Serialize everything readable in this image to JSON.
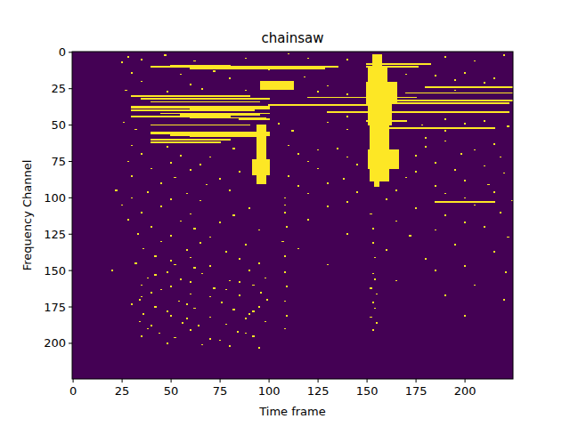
{
  "chart_data": {
    "type": "heatmap",
    "title": "chainsaw",
    "x_label": "Time frame",
    "y_label": "Frequency Channel",
    "xlim": [
      -0.5,
      224.5
    ],
    "ylim": [
      224.5,
      -0.5
    ],
    "xticks": [
      0,
      25,
      50,
      75,
      100,
      125,
      150,
      175,
      200
    ],
    "yticks": [
      0,
      25,
      50,
      75,
      100,
      125,
      150,
      175,
      200
    ],
    "zlim": [
      0,
      1
    ],
    "colors": [
      "#440154",
      "#fde725"
    ],
    "background": 0,
    "cell_value": 1,
    "cells": [
      [
        10,
        10,
        40,
        135
      ],
      [
        9,
        9,
        50,
        80
      ],
      [
        11,
        11,
        60,
        128
      ],
      [
        8,
        8,
        150,
        182
      ],
      [
        10,
        10,
        150,
        176
      ],
      [
        20,
        25,
        96,
        112
      ],
      [
        30,
        30,
        30,
        90
      ],
      [
        31,
        31,
        120,
        175
      ],
      [
        32,
        32,
        35,
        100
      ],
      [
        33,
        33,
        150,
        224
      ],
      [
        34,
        34,
        40,
        95
      ],
      [
        35,
        35,
        160,
        222
      ],
      [
        36,
        36,
        100,
        150
      ],
      [
        37,
        38,
        30,
        100
      ],
      [
        39,
        39,
        60,
        100
      ],
      [
        40,
        40,
        30,
        92
      ],
      [
        41,
        41,
        130,
        222
      ],
      [
        42,
        42,
        45,
        100
      ],
      [
        43,
        43,
        55,
        95
      ],
      [
        44,
        44,
        30,
        80
      ],
      [
        45,
        45,
        60,
        98
      ],
      [
        46,
        46,
        85,
        100
      ],
      [
        47,
        47,
        150,
        170
      ],
      [
        50,
        50,
        40,
        90
      ],
      [
        52,
        52,
        155,
        215
      ],
      [
        55,
        56,
        40,
        100
      ],
      [
        57,
        57,
        50,
        100
      ],
      [
        58,
        58,
        60,
        95
      ],
      [
        60,
        60,
        40,
        80
      ],
      [
        62,
        62,
        40,
        75
      ],
      [
        28,
        28,
        170,
        224
      ],
      [
        24,
        24,
        180,
        224
      ],
      [
        103,
        103,
        185,
        215
      ],
      [
        50,
        90,
        94,
        98
      ],
      [
        74,
        84,
        92,
        100
      ],
      [
        2,
        10,
        153,
        157
      ],
      [
        11,
        20,
        151,
        160
      ],
      [
        21,
        35,
        150,
        165
      ],
      [
        36,
        50,
        151,
        162
      ],
      [
        51,
        66,
        152,
        161
      ],
      [
        67,
        80,
        151,
        166
      ],
      [
        81,
        88,
        152,
        161
      ],
      [
        89,
        92,
        154,
        156
      ],
      [
        3,
        3,
        28,
        28
      ],
      [
        5,
        5,
        35,
        35
      ],
      [
        2,
        2,
        47,
        47
      ],
      [
        6,
        6,
        62,
        62
      ],
      [
        4,
        4,
        88,
        88
      ],
      [
        1,
        1,
        110,
        110
      ],
      [
        5,
        5,
        140,
        140
      ],
      [
        3,
        3,
        190,
        190
      ],
      [
        6,
        6,
        205,
        205
      ],
      [
        2,
        2,
        220,
        220
      ],
      [
        14,
        14,
        30,
        30
      ],
      [
        15,
        15,
        55,
        55
      ],
      [
        13,
        13,
        72,
        72
      ],
      [
        17,
        17,
        118,
        118
      ],
      [
        16,
        16,
        185,
        185
      ],
      [
        14,
        14,
        200,
        200
      ],
      [
        18,
        18,
        215,
        215
      ],
      [
        26,
        26,
        27,
        27
      ],
      [
        27,
        27,
        48,
        48
      ],
      [
        25,
        25,
        66,
        66
      ],
      [
        26,
        26,
        88,
        88
      ],
      [
        27,
        27,
        125,
        125
      ],
      [
        29,
        29,
        140,
        140
      ],
      [
        26,
        26,
        195,
        195
      ],
      [
        48,
        48,
        26,
        26
      ],
      [
        49,
        49,
        105,
        105
      ],
      [
        48,
        48,
        130,
        130
      ],
      [
        50,
        50,
        178,
        178
      ],
      [
        49,
        49,
        200,
        200
      ],
      [
        51,
        51,
        222,
        222
      ],
      [
        53,
        53,
        32,
        32
      ],
      [
        54,
        54,
        112,
        112
      ],
      [
        53,
        53,
        140,
        140
      ],
      [
        54,
        54,
        190,
        190
      ],
      [
        64,
        64,
        30,
        30
      ],
      [
        65,
        65,
        48,
        48
      ],
      [
        66,
        66,
        82,
        82
      ],
      [
        64,
        64,
        110,
        110
      ],
      [
        66,
        66,
        135,
        135
      ],
      [
        65,
        65,
        180,
        180
      ],
      [
        67,
        67,
        205,
        205
      ],
      [
        70,
        70,
        35,
        35
      ],
      [
        71,
        71,
        55,
        55
      ],
      [
        72,
        72,
        70,
        70
      ],
      [
        70,
        70,
        115,
        115
      ],
      [
        72,
        72,
        140,
        140
      ],
      [
        71,
        71,
        175,
        175
      ],
      [
        70,
        70,
        198,
        198
      ],
      [
        72,
        72,
        218,
        218
      ],
      [
        75,
        75,
        28,
        28
      ],
      [
        76,
        76,
        50,
        50
      ],
      [
        77,
        77,
        65,
        65
      ],
      [
        75,
        75,
        120,
        120
      ],
      [
        77,
        77,
        145,
        145
      ],
      [
        76,
        76,
        185,
        185
      ],
      [
        78,
        78,
        210,
        210
      ],
      [
        80,
        80,
        40,
        40
      ],
      [
        81,
        81,
        60,
        60
      ],
      [
        82,
        82,
        85,
        85
      ],
      [
        80,
        80,
        125,
        125
      ],
      [
        82,
        82,
        175,
        175
      ],
      [
        81,
        81,
        195,
        195
      ],
      [
        83,
        83,
        220,
        220
      ],
      [
        85,
        85,
        30,
        30
      ],
      [
        86,
        86,
        52,
        52
      ],
      [
        87,
        87,
        75,
        75
      ],
      [
        85,
        85,
        110,
        110
      ],
      [
        87,
        87,
        138,
        138
      ],
      [
        86,
        86,
        170,
        170
      ],
      [
        88,
        88,
        200,
        200
      ],
      [
        90,
        90,
        45,
        45
      ],
      [
        91,
        91,
        68,
        68
      ],
      [
        92,
        92,
        115,
        115
      ],
      [
        90,
        90,
        130,
        130
      ],
      [
        92,
        92,
        185,
        185
      ],
      [
        91,
        91,
        212,
        212
      ],
      [
        95,
        95,
        22,
        22
      ],
      [
        96,
        96,
        38,
        38
      ],
      [
        97,
        97,
        58,
        58
      ],
      [
        95,
        95,
        80,
        80
      ],
      [
        97,
        97,
        120,
        120
      ],
      [
        96,
        96,
        145,
        145
      ],
      [
        95,
        95,
        165,
        165
      ],
      [
        97,
        97,
        190,
        190
      ],
      [
        96,
        96,
        215,
        215
      ],
      [
        100,
        100,
        30,
        30
      ],
      [
        101,
        101,
        50,
        50
      ],
      [
        102,
        102,
        65,
        65
      ],
      [
        100,
        100,
        108,
        108
      ],
      [
        103,
        103,
        140,
        140
      ],
      [
        101,
        101,
        160,
        160
      ],
      [
        100,
        100,
        200,
        200
      ],
      [
        102,
        102,
        224,
        224
      ],
      [
        105,
        105,
        25,
        25
      ],
      [
        106,
        106,
        45,
        45
      ],
      [
        107,
        107,
        90,
        90
      ],
      [
        105,
        105,
        108,
        108
      ],
      [
        106,
        106,
        130,
        130
      ],
      [
        107,
        107,
        175,
        175
      ],
      [
        105,
        105,
        205,
        205
      ],
      [
        110,
        110,
        35,
        35
      ],
      [
        111,
        111,
        60,
        60
      ],
      [
        112,
        112,
        82,
        82
      ],
      [
        110,
        110,
        108,
        108
      ],
      [
        111,
        111,
        152,
        152
      ],
      [
        112,
        112,
        190,
        190
      ],
      [
        110,
        110,
        218,
        218
      ],
      [
        115,
        115,
        28,
        28
      ],
      [
        116,
        116,
        55,
        55
      ],
      [
        117,
        117,
        75,
        75
      ],
      [
        115,
        115,
        120,
        120
      ],
      [
        116,
        116,
        165,
        165
      ],
      [
        117,
        117,
        200,
        200
      ],
      [
        120,
        120,
        40,
        40
      ],
      [
        121,
        121,
        62,
        62
      ],
      [
        122,
        122,
        95,
        95
      ],
      [
        120,
        120,
        109,
        109
      ],
      [
        121,
        121,
        153,
        153
      ],
      [
        122,
        122,
        185,
        185
      ],
      [
        120,
        120,
        210,
        210
      ],
      [
        125,
        125,
        33,
        33
      ],
      [
        126,
        126,
        50,
        50
      ],
      [
        127,
        127,
        70,
        70
      ],
      [
        125,
        125,
        140,
        140
      ],
      [
        126,
        126,
        172,
        172
      ],
      [
        127,
        127,
        222,
        222
      ],
      [
        130,
        130,
        45,
        45
      ],
      [
        131,
        131,
        65,
        65
      ],
      [
        132,
        132,
        88,
        88
      ],
      [
        130,
        130,
        107,
        107
      ],
      [
        131,
        131,
        153,
        153
      ],
      [
        132,
        132,
        195,
        195
      ],
      [
        135,
        135,
        36,
        36
      ],
      [
        136,
        136,
        58,
        58
      ],
      [
        137,
        137,
        78,
        78
      ],
      [
        135,
        135,
        115,
        115
      ],
      [
        136,
        136,
        160,
        160
      ],
      [
        137,
        137,
        215,
        215
      ],
      [
        140,
        140,
        42,
        42
      ],
      [
        141,
        141,
        60,
        60
      ],
      [
        142,
        142,
        85,
        85
      ],
      [
        140,
        140,
        108,
        108
      ],
      [
        141,
        141,
        154,
        154
      ],
      [
        142,
        142,
        180,
        180
      ],
      [
        145,
        145,
        32,
        32
      ],
      [
        146,
        146,
        52,
        52
      ],
      [
        147,
        147,
        70,
        70
      ],
      [
        145,
        145,
        95,
        95
      ],
      [
        146,
        146,
        130,
        130
      ],
      [
        147,
        147,
        200,
        200
      ],
      [
        150,
        150,
        20,
        20
      ],
      [
        151,
        151,
        48,
        48
      ],
      [
        152,
        152,
        66,
        66
      ],
      [
        150,
        150,
        90,
        90
      ],
      [
        151,
        151,
        108,
        108
      ],
      [
        152,
        152,
        153,
        153
      ],
      [
        150,
        150,
        185,
        185
      ],
      [
        151,
        151,
        221,
        221
      ],
      [
        155,
        155,
        38,
        38
      ],
      [
        156,
        156,
        55,
        55
      ],
      [
        157,
        157,
        80,
        80
      ],
      [
        155,
        155,
        98,
        98
      ],
      [
        156,
        156,
        154,
        154
      ],
      [
        157,
        157,
        165,
        165
      ],
      [
        160,
        160,
        35,
        35
      ],
      [
        161,
        161,
        50,
        50
      ],
      [
        162,
        162,
        72,
        72
      ],
      [
        160,
        160,
        92,
        92
      ],
      [
        161,
        161,
        109,
        109
      ],
      [
        162,
        162,
        152,
        152
      ],
      [
        160,
        160,
        205,
        205
      ],
      [
        165,
        165,
        40,
        40
      ],
      [
        166,
        166,
        60,
        60
      ],
      [
        167,
        167,
        85,
        85
      ],
      [
        165,
        165,
        96,
        96
      ],
      [
        166,
        166,
        155,
        155
      ],
      [
        167,
        167,
        190,
        190
      ],
      [
        170,
        170,
        34,
        34
      ],
      [
        171,
        171,
        54,
        54
      ],
      [
        172,
        172,
        76,
        76
      ],
      [
        170,
        170,
        99,
        99
      ],
      [
        171,
        171,
        108,
        108
      ],
      [
        172,
        172,
        153,
        153
      ],
      [
        170,
        170,
        220,
        220
      ],
      [
        175,
        175,
        42,
        42
      ],
      [
        176,
        176,
        62,
        62
      ],
      [
        177,
        177,
        82,
        82
      ],
      [
        175,
        175,
        95,
        95
      ],
      [
        176,
        176,
        154,
        154
      ],
      [
        180,
        180,
        36,
        36
      ],
      [
        181,
        181,
        50,
        50
      ],
      [
        182,
        182,
        70,
        70
      ],
      [
        180,
        180,
        90,
        90
      ],
      [
        181,
        181,
        109,
        109
      ],
      [
        182,
        182,
        152,
        152
      ],
      [
        181,
        181,
        200,
        200
      ],
      [
        185,
        185,
        34,
        34
      ],
      [
        186,
        186,
        56,
        56
      ],
      [
        187,
        187,
        78,
        78
      ],
      [
        185,
        185,
        98,
        98
      ],
      [
        186,
        186,
        155,
        155
      ],
      [
        190,
        190,
        38,
        38
      ],
      [
        191,
        191,
        60,
        60
      ],
      [
        192,
        192,
        84,
        84
      ],
      [
        190,
        190,
        108,
        108
      ],
      [
        191,
        191,
        153,
        153
      ],
      [
        195,
        195,
        35,
        35
      ],
      [
        196,
        196,
        52,
        52
      ],
      [
        197,
        197,
        70,
        70
      ],
      [
        195,
        195,
        92,
        92
      ],
      [
        200,
        200,
        48,
        48
      ],
      [
        201,
        201,
        66,
        66
      ],
      [
        202,
        202,
        80,
        80
      ],
      [
        203,
        203,
        95,
        95
      ],
      [
        153,
        153,
        42,
        42
      ],
      [
        158,
        158,
        60,
        60
      ],
      [
        163,
        163,
        45,
        45
      ],
      [
        168,
        168,
        70,
        70
      ],
      [
        173,
        173,
        58,
        58
      ],
      [
        178,
        178,
        48,
        48
      ],
      [
        183,
        183,
        88,
        88
      ],
      [
        188,
        188,
        64,
        64
      ],
      [
        193,
        193,
        44,
        44
      ],
      [
        198,
        198,
        75,
        75
      ],
      [
        168,
        168,
        35,
        35
      ],
      [
        178,
        178,
        92,
        92
      ],
      [
        188,
        188,
        40,
        40
      ],
      [
        158,
        158,
        85,
        85
      ],
      [
        148,
        148,
        62,
        62
      ],
      [
        143,
        143,
        50,
        50
      ],
      [
        163,
        163,
        78,
        78
      ],
      [
        173,
        173,
        30,
        30
      ],
      [
        183,
        183,
        58,
        58
      ],
      [
        193,
        193,
        88,
        88
      ],
      [
        20,
        20,
        35,
        35
      ],
      [
        22,
        22,
        60,
        60
      ],
      [
        18,
        18,
        80,
        80
      ],
      [
        23,
        23,
        130,
        130
      ],
      [
        19,
        19,
        195,
        195
      ],
      [
        21,
        21,
        210,
        210
      ],
      [
        15,
        15,
        170,
        170
      ],
      [
        12,
        12,
        100,
        100
      ],
      [
        7,
        7,
        25,
        25
      ],
      [
        4,
        4,
        120,
        120
      ],
      [
        46,
        46,
        190,
        190
      ],
      [
        47,
        47,
        210,
        210
      ],
      [
        44,
        44,
        140,
        140
      ],
      [
        61,
        61,
        190,
        190
      ],
      [
        63,
        63,
        215,
        215
      ],
      [
        67,
        67,
        125,
        125
      ],
      [
        59,
        59,
        180,
        180
      ]
    ]
  }
}
